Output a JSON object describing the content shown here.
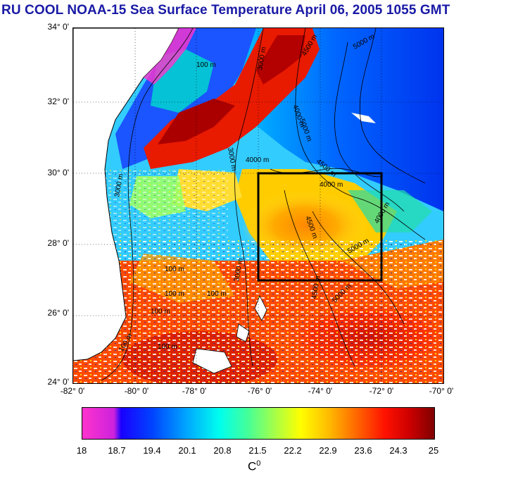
{
  "title": "RU COOL  NOAA-15 Sea Surface Temperature April 06, 2005 1055 GMT",
  "map": {
    "lat_labels": [
      "34° 0'",
      "32° 0'",
      "30° 0'",
      "28° 0'",
      "26° 0'",
      "24° 0'"
    ],
    "lon_labels": [
      "-82° 0'",
      "-80° 0'",
      "-78° 0'",
      "-76° 0'",
      "-74° 0'",
      "-72° 0'",
      "-70° 0'"
    ],
    "lat_range": [
      24,
      34
    ],
    "lon_range": [
      -82,
      -70
    ],
    "study_box": {
      "lon": [
        -76,
        -72
      ],
      "lat": [
        27,
        30
      ]
    },
    "contour_labels": [
      "100 m",
      "3000 m",
      "4500 m",
      "5000 m",
      "4000 m",
      "3000 m",
      "4000 m",
      "4500 m",
      "4000 m",
      "4500 m",
      "5000 m",
      "4000 m",
      "4500 m",
      "5000 m",
      "5000 m",
      "3000 m",
      "100 m",
      "100 m",
      "100 m",
      "100 m",
      "100 m",
      "100 m",
      "3000 m"
    ],
    "colors": {
      "land": "#ffffff",
      "coast": "#000000",
      "box": "#000000"
    }
  },
  "colorbar": {
    "ticks": [
      "18",
      "18.7",
      "19.4",
      "20.1",
      "20.8",
      "21.5",
      "22.2",
      "22.9",
      "23.6",
      "24.3",
      "25"
    ],
    "unit": "C",
    "unit_sup": "0",
    "range": [
      18,
      25
    ]
  }
}
